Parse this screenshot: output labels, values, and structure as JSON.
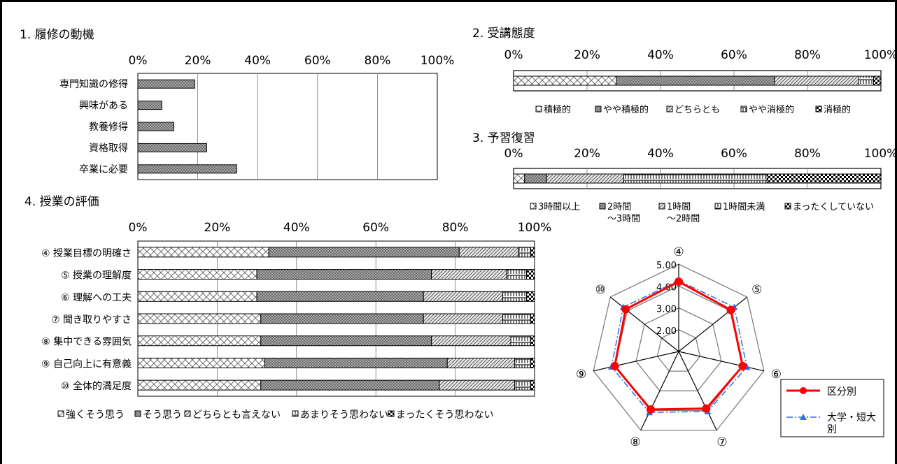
{
  "colors": {
    "frame": "#000000",
    "fill_strong": "#e8e8e8",
    "fill_yes": "#9a9a9a",
    "fill_neutral": "#cfcfcf",
    "radar_class": "#ff0000",
    "radar_univ": "#2f6fe0",
    "radar_web": "#808080"
  },
  "chart_data": [
    {
      "type": "bar",
      "title": "1. 履修の動機",
      "orientation": "horizontal",
      "categories": [
        "専門知識の修得",
        "興味がある",
        "教養修得",
        "資格取得",
        "卒業に必要"
      ],
      "values": [
        19,
        8,
        12,
        23,
        33
      ],
      "xlim": [
        0,
        100
      ],
      "tick_labels": [
        "0%",
        "20%",
        "40%",
        "60%",
        "80%",
        "100%"
      ],
      "grid": true
    },
    {
      "type": "bar",
      "title": "2. 受講態度",
      "stacked": true,
      "orientation": "horizontal",
      "categories": [
        ""
      ],
      "series": [
        {
          "name": "積極的",
          "values": [
            28
          ]
        },
        {
          "name": "やや積極的",
          "values": [
            43
          ]
        },
        {
          "name": "どちらとも",
          "values": [
            23
          ]
        },
        {
          "name": "やや消極的",
          "values": [
            4
          ]
        },
        {
          "name": "消極的",
          "values": [
            2
          ]
        }
      ],
      "xlim": [
        0,
        100
      ],
      "tick_labels": [
        "0%",
        "20%",
        "40%",
        "60%",
        "80%",
        "100%"
      ],
      "legend": "bottom"
    },
    {
      "type": "bar",
      "title": "3. 予習復習",
      "stacked": true,
      "orientation": "horizontal",
      "categories": [
        ""
      ],
      "series": [
        {
          "name": "3時間以上",
          "values": [
            3
          ]
        },
        {
          "name": "2時間～3時間",
          "values": [
            6
          ]
        },
        {
          "name": "1時間～2時間",
          "values": [
            21
          ]
        },
        {
          "name": "1時間未満",
          "values": [
            39
          ]
        },
        {
          "name": "まったくしていない",
          "values": [
            31
          ]
        }
      ],
      "xlim": [
        0,
        100
      ],
      "tick_labels": [
        "0%",
        "20%",
        "40%",
        "60%",
        "80%",
        "100%"
      ],
      "legend": "bottom"
    },
    {
      "type": "bar",
      "title": "4. 授業の評価",
      "stacked": true,
      "orientation": "horizontal",
      "categories": [
        "④ 授業目標の明確さ",
        "⑤ 授業の理解度",
        "⑥ 理解への工夫",
        "⑦ 聞き取りやすさ",
        "⑧ 集中できる雰囲気",
        "⑨ 自己向上に有意義",
        "⑩ 全体的満足度"
      ],
      "series": [
        {
          "name": "強くそう思う",
          "values": [
            33,
            30,
            30,
            31,
            31,
            32,
            31
          ]
        },
        {
          "name": "そう思う",
          "values": [
            48,
            44,
            42,
            41,
            43,
            46,
            45
          ]
        },
        {
          "name": "どちらとも言えない",
          "values": [
            15,
            19,
            20,
            20,
            20,
            17,
            19
          ]
        },
        {
          "name": "あまりそう思わない",
          "values": [
            3,
            5,
            6,
            7,
            5,
            4,
            4
          ]
        },
        {
          "name": "まったくそう思わない",
          "values": [
            1,
            2,
            2,
            1,
            1,
            1,
            1
          ]
        }
      ],
      "xlim": [
        0,
        100
      ],
      "tick_labels": [
        "0%",
        "20%",
        "40%",
        "60%",
        "80%",
        "100%"
      ],
      "legend": "bottom"
    },
    {
      "type": "radar",
      "axes": [
        "④",
        "⑤",
        "⑥",
        "⑦",
        "⑧",
        "⑨",
        "⑩"
      ],
      "rlim": [
        1,
        5
      ],
      "tick_labels": [
        "2.00",
        "3.00",
        "4.00",
        "5.00"
      ],
      "series": [
        {
          "name": "区分別",
          "values": [
            4.2,
            4.05,
            4.0,
            3.9,
            3.95,
            4.0,
            4.1
          ]
        },
        {
          "name": "大学・短大別",
          "values": [
            4.25,
            4.25,
            4.2,
            4.05,
            4.1,
            4.15,
            4.25
          ]
        }
      ],
      "legend": "bottom-right"
    }
  ]
}
